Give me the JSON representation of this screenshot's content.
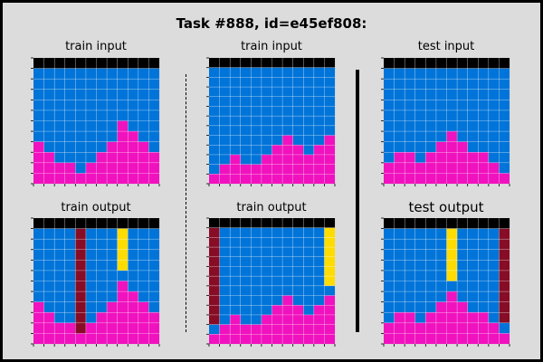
{
  "title": "Task #888, id=e45ef808:",
  "colors": {
    "0": "#000000",
    "1": "#0074D9",
    "2": "#FF4136",
    "3": "#2ECC40",
    "4": "#FFDC00",
    "5": "#AAAAAA",
    "6": "#F012BE",
    "7": "#FF851B",
    "8": "#7FDBFF",
    "9": "#870C25"
  },
  "panels": [
    {
      "label": "train input",
      "grid": [
        [
          0,
          0,
          0,
          0,
          0,
          0,
          0,
          0,
          0,
          0,
          0,
          0
        ],
        [
          1,
          1,
          1,
          1,
          1,
          1,
          1,
          1,
          1,
          1,
          1,
          1
        ],
        [
          1,
          1,
          1,
          1,
          1,
          1,
          1,
          1,
          1,
          1,
          1,
          1
        ],
        [
          1,
          1,
          1,
          1,
          1,
          1,
          1,
          1,
          1,
          1,
          1,
          1
        ],
        [
          1,
          1,
          1,
          1,
          1,
          1,
          1,
          1,
          1,
          1,
          1,
          1
        ],
        [
          1,
          1,
          1,
          1,
          1,
          1,
          1,
          1,
          1,
          1,
          1,
          1
        ],
        [
          1,
          1,
          1,
          1,
          1,
          1,
          1,
          1,
          6,
          1,
          1,
          1
        ],
        [
          1,
          1,
          1,
          1,
          1,
          1,
          1,
          1,
          6,
          6,
          1,
          1
        ],
        [
          6,
          1,
          1,
          1,
          1,
          1,
          1,
          6,
          6,
          6,
          6,
          1
        ],
        [
          6,
          6,
          1,
          1,
          1,
          1,
          6,
          6,
          6,
          6,
          6,
          6
        ],
        [
          6,
          6,
          6,
          6,
          1,
          6,
          6,
          6,
          6,
          6,
          6,
          6
        ],
        [
          6,
          6,
          6,
          6,
          6,
          6,
          6,
          6,
          6,
          6,
          6,
          6
        ]
      ]
    },
    {
      "label": "train input",
      "grid": [
        [
          0,
          0,
          0,
          0,
          0,
          0,
          0,
          0,
          0,
          0,
          0,
          0
        ],
        [
          1,
          1,
          1,
          1,
          1,
          1,
          1,
          1,
          1,
          1,
          1,
          1
        ],
        [
          1,
          1,
          1,
          1,
          1,
          1,
          1,
          1,
          1,
          1,
          1,
          1
        ],
        [
          1,
          1,
          1,
          1,
          1,
          1,
          1,
          1,
          1,
          1,
          1,
          1
        ],
        [
          1,
          1,
          1,
          1,
          1,
          1,
          1,
          1,
          1,
          1,
          1,
          1
        ],
        [
          1,
          1,
          1,
          1,
          1,
          1,
          1,
          1,
          1,
          1,
          1,
          1
        ],
        [
          1,
          1,
          1,
          1,
          1,
          1,
          1,
          1,
          1,
          1,
          1,
          1
        ],
        [
          1,
          1,
          1,
          1,
          1,
          1,
          1,
          1,
          1,
          1,
          1,
          1
        ],
        [
          1,
          1,
          1,
          1,
          1,
          1,
          1,
          6,
          1,
          1,
          1,
          6
        ],
        [
          1,
          1,
          1,
          1,
          1,
          1,
          6,
          6,
          6,
          1,
          6,
          6
        ],
        [
          1,
          1,
          6,
          1,
          1,
          6,
          6,
          6,
          6,
          6,
          6,
          6
        ],
        [
          1,
          6,
          6,
          6,
          6,
          6,
          6,
          6,
          6,
          6,
          6,
          6
        ],
        [
          6,
          6,
          6,
          6,
          6,
          6,
          6,
          6,
          6,
          6,
          6,
          6
        ]
      ]
    },
    {
      "label": "test input",
      "grid": [
        [
          0,
          0,
          0,
          0,
          0,
          0,
          0,
          0,
          0,
          0,
          0,
          0
        ],
        [
          1,
          1,
          1,
          1,
          1,
          1,
          1,
          1,
          1,
          1,
          1,
          1
        ],
        [
          1,
          1,
          1,
          1,
          1,
          1,
          1,
          1,
          1,
          1,
          1,
          1
        ],
        [
          1,
          1,
          1,
          1,
          1,
          1,
          1,
          1,
          1,
          1,
          1,
          1
        ],
        [
          1,
          1,
          1,
          1,
          1,
          1,
          1,
          1,
          1,
          1,
          1,
          1
        ],
        [
          1,
          1,
          1,
          1,
          1,
          1,
          1,
          1,
          1,
          1,
          1,
          1
        ],
        [
          1,
          1,
          1,
          1,
          1,
          1,
          1,
          1,
          1,
          1,
          1,
          1
        ],
        [
          1,
          1,
          1,
          1,
          1,
          1,
          6,
          1,
          1,
          1,
          1,
          1
        ],
        [
          1,
          1,
          1,
          1,
          1,
          6,
          6,
          6,
          1,
          1,
          1,
          1
        ],
        [
          1,
          6,
          6,
          1,
          6,
          6,
          6,
          6,
          6,
          6,
          1,
          1
        ],
        [
          6,
          6,
          6,
          6,
          6,
          6,
          6,
          6,
          6,
          6,
          6,
          1
        ],
        [
          6,
          6,
          6,
          6,
          6,
          6,
          6,
          6,
          6,
          6,
          6,
          6
        ]
      ]
    },
    {
      "label": "train output",
      "grid": [
        [
          0,
          0,
          0,
          0,
          0,
          0,
          0,
          0,
          0,
          0,
          0,
          0
        ],
        [
          1,
          1,
          1,
          1,
          9,
          1,
          1,
          1,
          4,
          1,
          1,
          1
        ],
        [
          1,
          1,
          1,
          1,
          9,
          1,
          1,
          1,
          4,
          1,
          1,
          1
        ],
        [
          1,
          1,
          1,
          1,
          9,
          1,
          1,
          1,
          4,
          1,
          1,
          1
        ],
        [
          1,
          1,
          1,
          1,
          9,
          1,
          1,
          1,
          4,
          1,
          1,
          1
        ],
        [
          1,
          1,
          1,
          1,
          9,
          1,
          1,
          1,
          1,
          1,
          1,
          1
        ],
        [
          1,
          1,
          1,
          1,
          9,
          1,
          1,
          1,
          6,
          1,
          1,
          1
        ],
        [
          1,
          1,
          1,
          1,
          9,
          1,
          1,
          1,
          6,
          6,
          1,
          1
        ],
        [
          6,
          1,
          1,
          1,
          9,
          1,
          1,
          6,
          6,
          6,
          6,
          1
        ],
        [
          6,
          6,
          1,
          1,
          9,
          1,
          6,
          6,
          6,
          6,
          6,
          6
        ],
        [
          6,
          6,
          6,
          6,
          9,
          6,
          6,
          6,
          6,
          6,
          6,
          6
        ],
        [
          6,
          6,
          6,
          6,
          6,
          6,
          6,
          6,
          6,
          6,
          6,
          6
        ]
      ]
    },
    {
      "label": "train output",
      "grid": [
        [
          0,
          0,
          0,
          0,
          0,
          0,
          0,
          0,
          0,
          0,
          0,
          0
        ],
        [
          9,
          1,
          1,
          1,
          1,
          1,
          1,
          1,
          1,
          1,
          1,
          4
        ],
        [
          9,
          1,
          1,
          1,
          1,
          1,
          1,
          1,
          1,
          1,
          1,
          4
        ],
        [
          9,
          1,
          1,
          1,
          1,
          1,
          1,
          1,
          1,
          1,
          1,
          4
        ],
        [
          9,
          1,
          1,
          1,
          1,
          1,
          1,
          1,
          1,
          1,
          1,
          4
        ],
        [
          9,
          1,
          1,
          1,
          1,
          1,
          1,
          1,
          1,
          1,
          1,
          4
        ],
        [
          9,
          1,
          1,
          1,
          1,
          1,
          1,
          1,
          1,
          1,
          1,
          4
        ],
        [
          9,
          1,
          1,
          1,
          1,
          1,
          1,
          1,
          1,
          1,
          1,
          1
        ],
        [
          9,
          1,
          1,
          1,
          1,
          1,
          1,
          6,
          1,
          1,
          1,
          6
        ],
        [
          9,
          1,
          1,
          1,
          1,
          1,
          6,
          6,
          6,
          1,
          6,
          6
        ],
        [
          9,
          1,
          6,
          1,
          1,
          6,
          6,
          6,
          6,
          6,
          6,
          6
        ],
        [
          1,
          6,
          6,
          6,
          6,
          6,
          6,
          6,
          6,
          6,
          6,
          6
        ],
        [
          6,
          6,
          6,
          6,
          6,
          6,
          6,
          6,
          6,
          6,
          6,
          6
        ]
      ]
    },
    {
      "label": "test output",
      "big": true,
      "grid": [
        [
          0,
          0,
          0,
          0,
          0,
          0,
          0,
          0,
          0,
          0,
          0,
          0
        ],
        [
          1,
          1,
          1,
          1,
          1,
          1,
          4,
          1,
          1,
          1,
          1,
          9
        ],
        [
          1,
          1,
          1,
          1,
          1,
          1,
          4,
          1,
          1,
          1,
          1,
          9
        ],
        [
          1,
          1,
          1,
          1,
          1,
          1,
          4,
          1,
          1,
          1,
          1,
          9
        ],
        [
          1,
          1,
          1,
          1,
          1,
          1,
          4,
          1,
          1,
          1,
          1,
          9
        ],
        [
          1,
          1,
          1,
          1,
          1,
          1,
          4,
          1,
          1,
          1,
          1,
          9
        ],
        [
          1,
          1,
          1,
          1,
          1,
          1,
          1,
          1,
          1,
          1,
          1,
          9
        ],
        [
          1,
          1,
          1,
          1,
          1,
          1,
          6,
          1,
          1,
          1,
          1,
          9
        ],
        [
          1,
          1,
          1,
          1,
          1,
          6,
          6,
          6,
          1,
          1,
          1,
          9
        ],
        [
          1,
          6,
          6,
          1,
          6,
          6,
          6,
          6,
          6,
          6,
          1,
          9
        ],
        [
          6,
          6,
          6,
          6,
          6,
          6,
          6,
          6,
          6,
          6,
          6,
          1
        ],
        [
          6,
          6,
          6,
          6,
          6,
          6,
          6,
          6,
          6,
          6,
          6,
          6
        ]
      ]
    }
  ]
}
